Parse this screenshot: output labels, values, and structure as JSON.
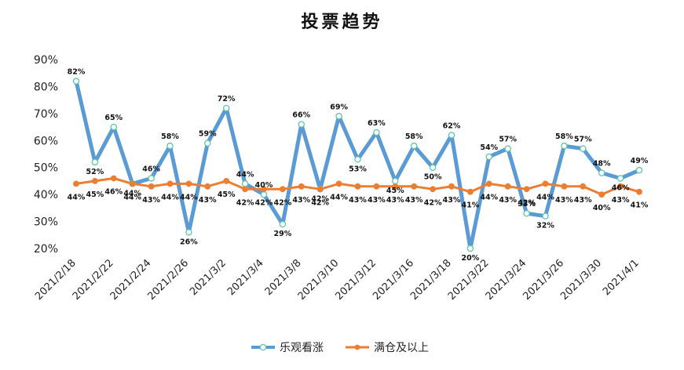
{
  "chart_data": {
    "type": "line",
    "title": "投票趋势",
    "xlabel": "",
    "ylabel": "",
    "ylim": [
      20,
      90
    ],
    "y_ticks": [
      "20%",
      "30%",
      "40%",
      "50%",
      "60%",
      "70%",
      "80%",
      "90%"
    ],
    "grid": false,
    "legend_position": "bottom",
    "x": [
      "2021/2/18",
      "2021/2/19",
      "2021/2/22",
      "2021/2/23",
      "2021/2/24",
      "2021/2/25",
      "2021/2/26",
      "2021/3/1",
      "2021/3/2",
      "2021/3/3",
      "2021/3/4",
      "2021/3/5",
      "2021/3/8",
      "2021/3/9",
      "2021/3/10",
      "2021/3/11",
      "2021/3/12",
      "2021/3/15",
      "2021/3/16",
      "2021/3/17",
      "2021/3/18",
      "2021/3/19",
      "2021/3/22",
      "2021/3/23",
      "2021/3/24",
      "2021/3/25",
      "2021/3/26",
      "2021/3/29",
      "2021/3/30",
      "2021/3/31",
      "2021/4/1"
    ],
    "x_tick_labels": [
      "2021/2/18",
      "2021/2/22",
      "2021/2/24",
      "2021/2/26",
      "2021/3/2",
      "2021/3/4",
      "2021/3/8",
      "2021/3/10",
      "2021/3/12",
      "2021/3/16",
      "2021/3/18",
      "2021/3/22",
      "2021/3/24",
      "2021/3/26",
      "2021/3/30",
      "2021/4/1"
    ],
    "series": [
      {
        "name": "乐观看涨",
        "color": "#5B9BD5",
        "values": [
          82,
          52,
          65,
          44,
          46,
          58,
          26,
          59,
          72,
          44,
          40,
          29,
          66,
          42,
          69,
          53,
          63,
          45,
          58,
          50,
          62,
          20,
          54,
          57,
          33,
          32,
          58,
          57,
          48,
          46,
          49
        ],
        "labels": [
          "82%",
          "52%",
          "65%",
          "44%",
          "46%",
          "58%",
          "26%",
          "59%",
          "72%",
          "44%",
          "40%",
          "29%",
          "66%",
          "42%",
          "69%",
          "53%",
          "63%",
          "45%",
          "58%",
          "50%",
          "62%",
          "20%",
          "54%",
          "57%",
          "33%",
          "32%",
          "58%",
          "57%",
          "48%",
          "46%",
          "49%"
        ]
      },
      {
        "name": "满仓及以上",
        "color": "#ED7D31",
        "values": [
          44,
          45,
          46,
          44,
          43,
          44,
          44,
          43,
          45,
          42,
          42,
          42,
          43,
          42,
          44,
          43,
          43,
          43,
          43,
          42,
          43,
          41,
          44,
          43,
          42,
          44,
          43,
          43,
          40,
          43,
          41
        ],
        "labels": [
          "44%",
          "45%",
          "46%",
          "44%",
          "43%",
          "44%",
          "44%",
          "43%",
          "45%",
          "42%",
          "42%",
          "42%",
          "43%",
          "42%",
          "44%",
          "43%",
          "43%",
          "43%",
          "43%",
          "42%",
          "43%",
          "41%",
          "44%",
          "43%",
          "42%",
          "44%",
          "43%",
          "43%",
          "40%",
          "43%",
          "41%"
        ]
      }
    ]
  }
}
